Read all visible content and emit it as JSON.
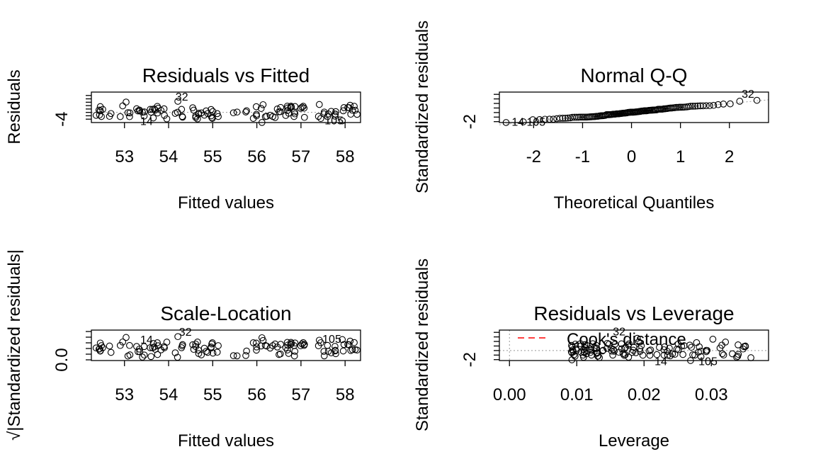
{
  "chart_data": [
    {
      "type": "scatter",
      "title": "Residuals vs Fitted",
      "xlabel": "Fitted values",
      "ylabel": "Residuals",
      "xlim": [
        52.25,
        58.35
      ],
      "ylim": [
        -6,
        12
      ],
      "x_ticks": [
        53,
        54,
        55,
        56,
        57,
        58
      ],
      "x_tick_labels": [
        "53",
        "54",
        "55",
        "56",
        "57",
        "58"
      ],
      "y_ticks": [
        -4
      ],
      "y_tick_labels": [
        "-4"
      ],
      "y_minor_ticks": [
        -4,
        -2,
        0,
        2,
        4,
        6,
        8,
        10
      ],
      "reference_line": "dotted-gray-at-0",
      "point_labels": [
        {
          "text": "32",
          "x": 54.3,
          "y": 9.5
        },
        {
          "text": "14",
          "x": 53.5,
          "y": -5.0
        },
        {
          "text": "105",
          "x": 57.75,
          "y": -4.6
        }
      ]
    },
    {
      "type": "scatter",
      "title": "Normal Q-Q",
      "xlabel": "Theoretical Quantiles",
      "ylabel": "Standardized residuals",
      "xlim": [
        -2.7,
        2.8
      ],
      "ylim": [
        -2.2,
        4.5
      ],
      "x_ticks": [
        -2,
        -1,
        0,
        1,
        2
      ],
      "x_tick_labels": [
        "-2",
        "-1",
        "0",
        "1",
        "2"
      ],
      "y_ticks": [
        -2
      ],
      "y_tick_labels": [
        "-2"
      ],
      "y_minor_ticks": [
        -2,
        -1,
        0,
        1,
        2,
        3,
        4
      ],
      "reference_line": "dotted-gray-qq-line",
      "point_labels": [
        {
          "text": "14",
          "x": -2.32,
          "y": -2.0
        },
        {
          "text": "105",
          "x": -1.95,
          "y": -1.95
        },
        {
          "text": "32",
          "x": 2.38,
          "y": 4.2
        }
      ]
    },
    {
      "type": "scatter",
      "title": "Scale-Location",
      "xlabel": "Fitted values",
      "ylabel": "√|Standardized residuals|",
      "xlim": [
        52.25,
        58.35
      ],
      "ylim": [
        -0.05,
        2.1
      ],
      "x_ticks": [
        53,
        54,
        55,
        56,
        57,
        58
      ],
      "x_tick_labels": [
        "53",
        "54",
        "55",
        "56",
        "57",
        "58"
      ],
      "y_ticks": [
        0.0
      ],
      "y_tick_labels": [
        "0.0"
      ],
      "y_minor_ticks": [
        0.0,
        0.4,
        0.8,
        1.2,
        1.6,
        2.0
      ],
      "reference_line": "none",
      "point_labels": [
        {
          "text": "14",
          "x": 53.5,
          "y": 1.45
        },
        {
          "text": "32",
          "x": 54.38,
          "y": 2.0
        },
        {
          "text": "105",
          "x": 57.7,
          "y": 1.5
        }
      ]
    },
    {
      "type": "scatter",
      "title": "Residuals vs Leverage",
      "xlabel": "Leverage",
      "ylabel": "Standardized residuals",
      "xlim": [
        -0.0015,
        0.0385
      ],
      "ylim": [
        -2.2,
        4.5
      ],
      "x_ticks": [
        0.0,
        0.01,
        0.02,
        0.03
      ],
      "x_tick_labels": [
        "0.00",
        "0.01",
        "0.02",
        "0.03"
      ],
      "y_ticks": [
        -2
      ],
      "y_tick_labels": [
        "-2"
      ],
      "y_minor_ticks": [
        -2,
        -1,
        0,
        1,
        2,
        3,
        4
      ],
      "reference_line": "dotted-gray",
      "legend": {
        "text": "Cook's distance",
        "line_color": "#ff0000",
        "placement": "top-left"
      },
      "point_labels": [
        {
          "text": "32",
          "x": 0.0163,
          "y": 4.3
        },
        {
          "text": "14",
          "x": 0.0225,
          "y": -2.3
        },
        {
          "text": "105",
          "x": 0.0295,
          "y": -2.3
        }
      ]
    }
  ],
  "colors": {
    "points": "#000000",
    "reference": "#999999",
    "cooks_line": "#ff0000"
  }
}
